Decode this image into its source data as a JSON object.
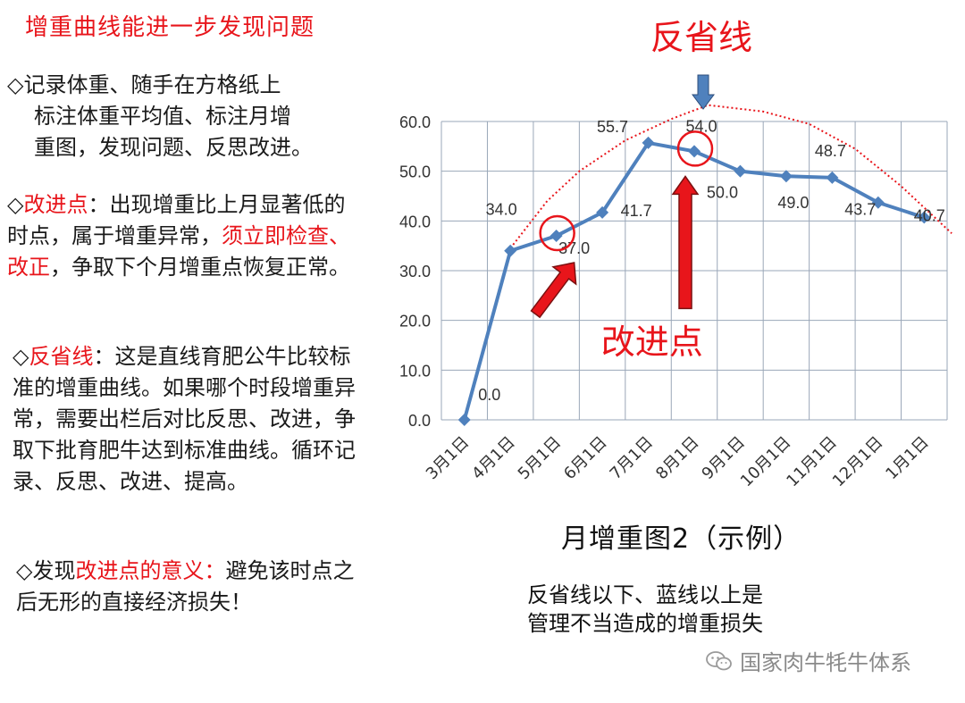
{
  "left_panel": {
    "title": "增重曲线能进一步发现问题",
    "p1_line1": "◇记录体重、随手在方格纸上",
    "p1_line2": "标注体重平均值、标注月增",
    "p1_line3": "重图，发现问题、反思改进。",
    "p2_prefix": "◇",
    "p2_key": "改进点",
    "p2_text1": "：出现增重比上月显著低的时点，属于增重异常，",
    "p2_red": "须立即检查、改正",
    "p2_text2": "，争取下个月增重点恢复正常。",
    "p3_prefix": "◇",
    "p3_key": "反省线",
    "p3_text": "：这是直线育肥公牛比较标准的增重曲线。如果哪个时段增重异常，需要出栏后对比反思、改进，争取下批育肥牛达到标准曲线。循环记录、反思、改进、提高。",
    "p4_prefix": "◇发现",
    "p4_key": "改进点的意义：",
    "p4_text": "避免该时点之后无形的直接经济损失！"
  },
  "chart_caption": "月增重图2（示例）",
  "note_line1": "反省线以下、蓝线以上是",
  "note_line2": "管理不当造成的增重损失",
  "watermark": "国家肉牛牦牛体系",
  "chart_data": {
    "type": "line",
    "categories": [
      "3月1日",
      "4月1日",
      "5月1日",
      "6月1日",
      "7月1日",
      "8月1日",
      "9月1日",
      "10月1日",
      "11月1日",
      "12月1日",
      "1月1日"
    ],
    "series": [
      {
        "values": [
          0.0,
          34.0,
          37.0,
          41.7,
          55.7,
          54.0,
          50.0,
          49.0,
          48.7,
          43.7,
          40.7
        ],
        "color": "#4f81bd"
      }
    ],
    "value_labels": [
      "0.0",
      "34.0",
      "37.0",
      "41.7",
      "55.7",
      "54.0",
      "50.0",
      "49.0",
      "48.7",
      "43.7",
      "40.7"
    ],
    "y_ticks": [
      "0.0",
      "10.0",
      "20.0",
      "30.0",
      "40.0",
      "50.0",
      "60.0"
    ],
    "ylim": [
      0,
      60
    ],
    "grid": true,
    "reflection_line": {
      "label": "反省线",
      "color": "#e8151b",
      "points": [
        [
          1.0,
          34.5
        ],
        [
          1.8,
          44.0
        ],
        [
          2.5,
          50.0
        ],
        [
          3.5,
          56.2
        ],
        [
          4.5,
          60.5
        ],
        [
          5.3,
          63.3
        ],
        [
          6.5,
          62.0
        ],
        [
          7.5,
          59.5
        ],
        [
          8.5,
          54.5
        ],
        [
          9.5,
          47.0
        ],
        [
          10.6,
          37.5
        ]
      ]
    },
    "improvement_label": "改进点",
    "improvement_points": [
      "5月1日",
      "8月1日"
    ],
    "annotation_color": "#e8151b",
    "arrow_color": "#4f81bd"
  }
}
